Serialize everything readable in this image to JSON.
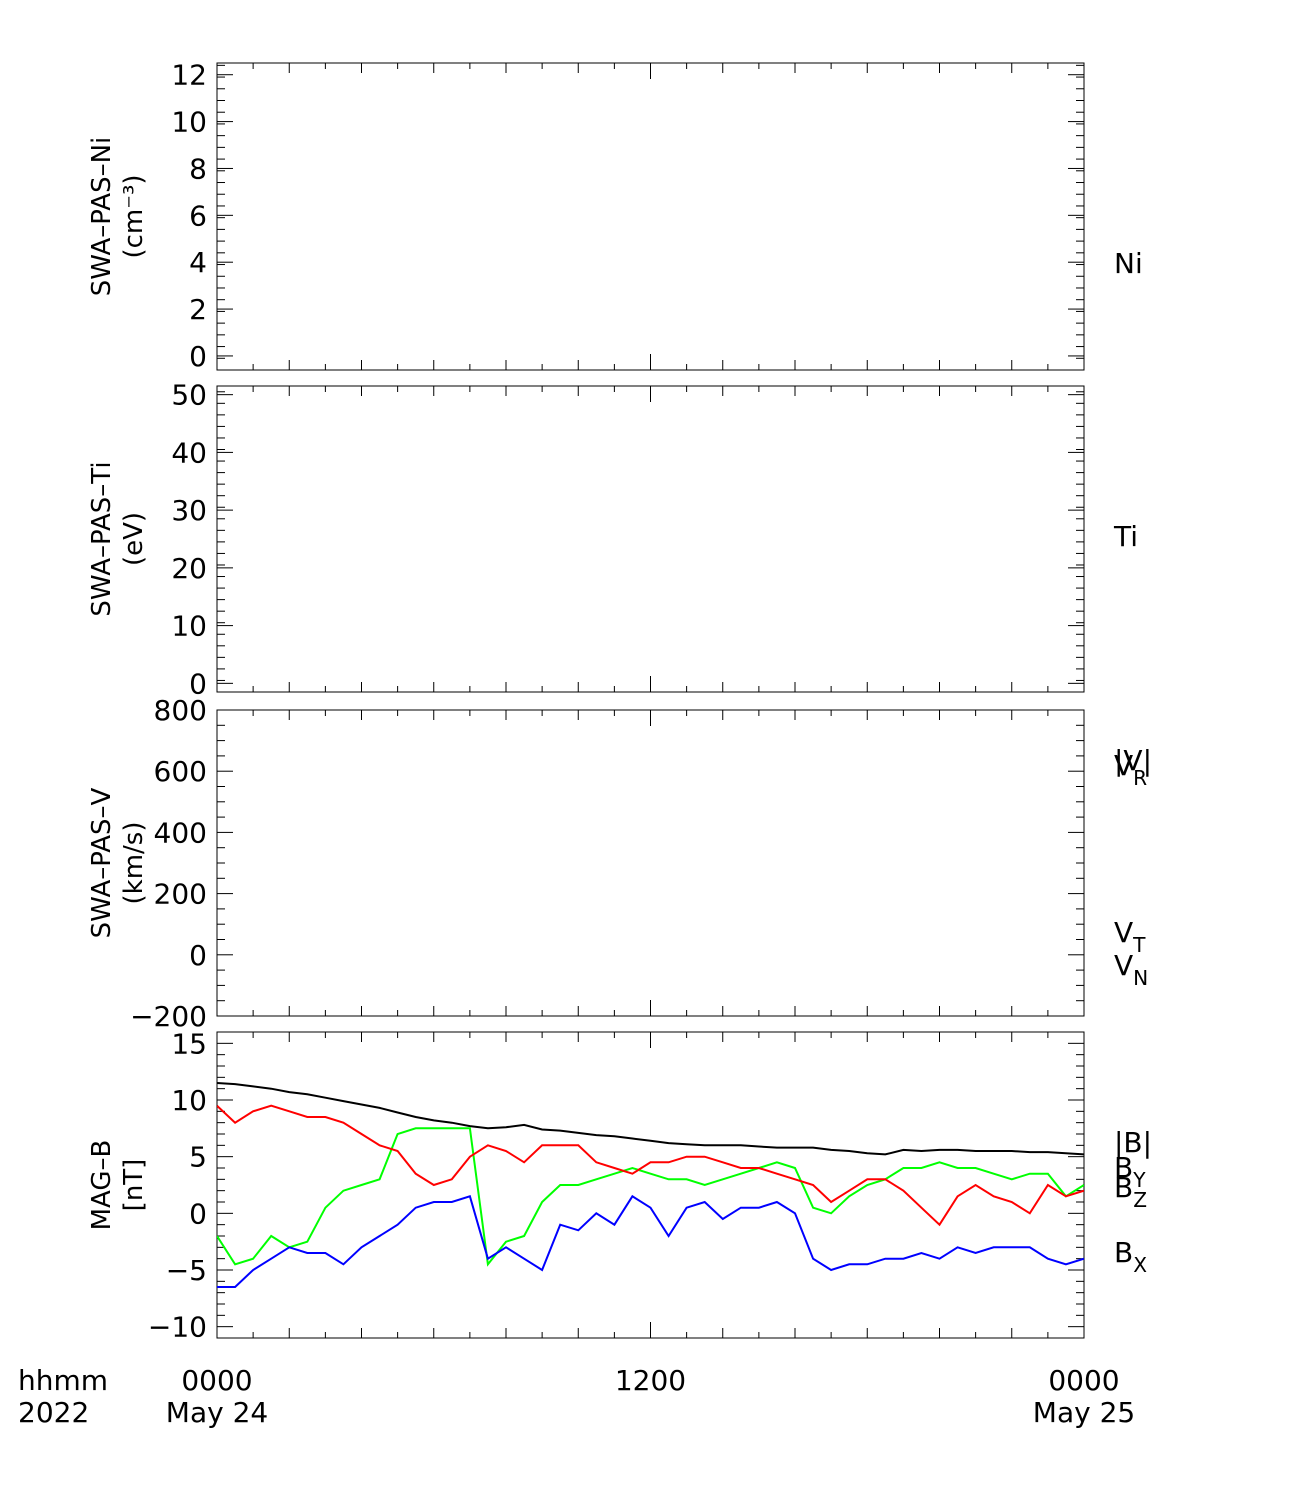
{
  "time_axis": {
    "label_line1": "hhmm",
    "label_line2": "2022",
    "ticks": [
      {
        "hhmm": "0000",
        "date": "May 24"
      },
      {
        "hhmm": "1200",
        "date": ""
      },
      {
        "hhmm": "0000",
        "date": "May 25"
      }
    ],
    "range_hours": [
      0,
      24
    ]
  },
  "chart_data": [
    {
      "type": "line",
      "ylabel": "SWA–PAS–Ni",
      "yunit": "(cm⁻³)",
      "ylim": [
        -0.6,
        12.5
      ],
      "yticks": [
        0,
        2,
        4,
        6,
        8,
        10,
        12
      ],
      "series": [
        {
          "name": "Ni",
          "color": "#000000",
          "x": [],
          "y": []
        }
      ]
    },
    {
      "type": "line",
      "ylabel": "SWA–PAS–Ti",
      "yunit": "(eV)",
      "ylim": [
        -1.5,
        51.5
      ],
      "yticks": [
        0,
        10,
        20,
        30,
        40,
        50
      ],
      "series": [
        {
          "name": "Ti",
          "color": "#000000",
          "x": [],
          "y": []
        }
      ]
    },
    {
      "type": "line",
      "ylabel": "SWA–PAS–V",
      "yunit": "(km/s)",
      "ylim": [
        -200,
        800
      ],
      "yticks": [
        -200,
        0,
        200,
        400,
        600,
        800
      ],
      "series": [
        {
          "name": "|V|",
          "color": "#000000",
          "x": [],
          "y": []
        },
        {
          "name": "V_R",
          "color": "#0000ff",
          "x": [],
          "y": []
        },
        {
          "name": "V_T",
          "color": "#00ff00",
          "x": [],
          "y": []
        },
        {
          "name": "V_N",
          "color": "#ff0000",
          "x": [],
          "y": []
        }
      ]
    },
    {
      "type": "line",
      "ylabel": "MAG–B",
      "yunit": "[nT]",
      "ylim": [
        -11,
        16
      ],
      "yticks": [
        -10,
        -5,
        0,
        5,
        10,
        15
      ],
      "series": [
        {
          "name": "|B|",
          "color": "#000000",
          "x": [
            0,
            0.5,
            1,
            1.5,
            2,
            2.5,
            3,
            3.5,
            4,
            4.5,
            5,
            5.5,
            6,
            6.5,
            7,
            7.5,
            8,
            8.5,
            9,
            9.5,
            10,
            10.5,
            11,
            11.5,
            12,
            12.5,
            13,
            13.5,
            14,
            14.5,
            15,
            15.5,
            16,
            16.5,
            17,
            17.5,
            18,
            18.5,
            19,
            19.5,
            20,
            20.5,
            21,
            21.5,
            22,
            22.5,
            23,
            23.5,
            24
          ],
          "y": [
            11.5,
            11.4,
            11.2,
            11.0,
            10.7,
            10.5,
            10.2,
            9.9,
            9.6,
            9.3,
            8.9,
            8.5,
            8.2,
            8.0,
            7.7,
            7.5,
            7.6,
            7.8,
            7.4,
            7.3,
            7.1,
            6.9,
            6.8,
            6.6,
            6.4,
            6.2,
            6.1,
            6.0,
            6.0,
            6.0,
            5.9,
            5.8,
            5.8,
            5.8,
            5.6,
            5.5,
            5.3,
            5.2,
            5.6,
            5.5,
            5.6,
            5.6,
            5.5,
            5.5,
            5.5,
            5.4,
            5.4,
            5.3,
            5.2
          ]
        },
        {
          "name": "B_Y",
          "color": "#00ff00",
          "x": [
            0,
            0.5,
            1,
            1.5,
            2,
            2.5,
            3,
            3.5,
            4,
            4.5,
            5,
            5.5,
            6,
            6.5,
            7,
            7.5,
            8,
            8.5,
            9,
            9.5,
            10,
            10.5,
            11,
            11.5,
            12,
            12.5,
            13,
            13.5,
            14,
            14.5,
            15,
            15.5,
            16,
            16.5,
            17,
            17.5,
            18,
            18.5,
            19,
            19.5,
            20,
            20.5,
            21,
            21.5,
            22,
            22.5,
            23,
            23.5,
            24
          ],
          "y": [
            -2.0,
            -4.5,
            -4.0,
            -2.0,
            -3.0,
            -2.5,
            0.5,
            2.0,
            2.5,
            3.0,
            7.0,
            7.5,
            7.5,
            7.5,
            7.5,
            -4.5,
            -2.5,
            -2.0,
            1.0,
            2.5,
            2.5,
            3.0,
            3.5,
            4.0,
            3.5,
            3.0,
            3.0,
            2.5,
            3.0,
            3.5,
            4.0,
            4.5,
            4.0,
            0.5,
            0.0,
            1.5,
            2.5,
            3.0,
            4.0,
            4.0,
            4.5,
            4.0,
            4.0,
            3.5,
            3.0,
            3.5,
            3.5,
            1.5,
            2.5
          ]
        },
        {
          "name": "B_Z",
          "color": "#ff0000",
          "x": [
            0,
            0.5,
            1,
            1.5,
            2,
            2.5,
            3,
            3.5,
            4,
            4.5,
            5,
            5.5,
            6,
            6.5,
            7,
            7.5,
            8,
            8.5,
            9,
            9.5,
            10,
            10.5,
            11,
            11.5,
            12,
            12.5,
            13,
            13.5,
            14,
            14.5,
            15,
            15.5,
            16,
            16.5,
            17,
            17.5,
            18,
            18.5,
            19,
            19.5,
            20,
            20.5,
            21,
            21.5,
            22,
            22.5,
            23,
            23.5,
            24
          ],
          "y": [
            9.5,
            8.0,
            9.0,
            9.5,
            9.0,
            8.5,
            8.5,
            8.0,
            7.0,
            6.0,
            5.5,
            3.5,
            2.5,
            3.0,
            5.0,
            6.0,
            5.5,
            4.5,
            6.0,
            6.0,
            6.0,
            4.5,
            4.0,
            3.5,
            4.5,
            4.5,
            5.0,
            5.0,
            4.5,
            4.0,
            4.0,
            3.5,
            3.0,
            2.5,
            1.0,
            2.0,
            3.0,
            3.0,
            2.0,
            0.5,
            -1.0,
            1.5,
            2.5,
            1.5,
            1.0,
            0.0,
            2.5,
            1.5,
            2.0
          ]
        },
        {
          "name": "B_X",
          "color": "#0000ff",
          "x": [
            0,
            0.5,
            1,
            1.5,
            2,
            2.5,
            3,
            3.5,
            4,
            4.5,
            5,
            5.5,
            6,
            6.5,
            7,
            7.5,
            8,
            8.5,
            9,
            9.5,
            10,
            10.5,
            11,
            11.5,
            12,
            12.5,
            13,
            13.5,
            14,
            14.5,
            15,
            15.5,
            16,
            16.5,
            17,
            17.5,
            18,
            18.5,
            19,
            19.5,
            20,
            20.5,
            21,
            21.5,
            22,
            22.5,
            23,
            23.5,
            24
          ],
          "y": [
            -6.5,
            -6.5,
            -5.0,
            -4.0,
            -3.0,
            -3.5,
            -3.5,
            -4.5,
            -3.0,
            -2.0,
            -1.0,
            0.5,
            1.0,
            1.0,
            1.5,
            -4.0,
            -3.0,
            -4.0,
            -5.0,
            -1.0,
            -1.5,
            0.0,
            -1.0,
            1.5,
            0.5,
            -2.0,
            0.5,
            1.0,
            -0.5,
            0.5,
            0.5,
            1.0,
            0.0,
            -4.0,
            -5.0,
            -4.5,
            -4.5,
            -4.0,
            -4.0,
            -3.5,
            -4.0,
            -3.0,
            -3.5,
            -3.0,
            -3.0,
            -3.0,
            -4.0,
            -4.5,
            -4.0
          ]
        }
      ]
    }
  ]
}
